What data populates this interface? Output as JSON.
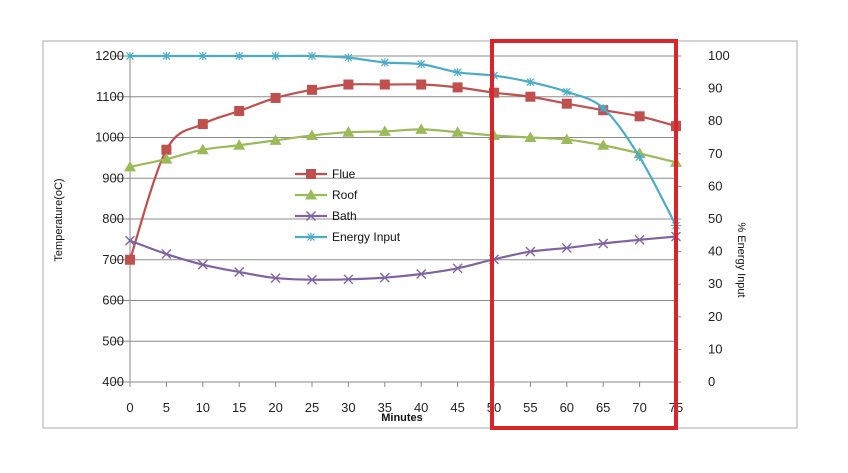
{
  "chart_data": {
    "type": "line",
    "xlabel": "Minutes",
    "ylabel": "Temperature(oC)",
    "y2label": "% Energy Input",
    "x": [
      0,
      5,
      10,
      15,
      20,
      25,
      30,
      35,
      40,
      45,
      50,
      55,
      60,
      65,
      70,
      75
    ],
    "xticks": [
      "0",
      "5",
      "10",
      "15",
      "20",
      "25",
      "30",
      "35",
      "40",
      "45",
      "50",
      "55",
      "60",
      "65",
      "70",
      "75"
    ],
    "ylim": [
      400,
      1200
    ],
    "yticks": [
      "400",
      "500",
      "600",
      "700",
      "800",
      "900",
      "1000",
      "1100",
      "1200"
    ],
    "y2lim": [
      0,
      100
    ],
    "y2ticks": [
      "0",
      "10",
      "20",
      "30",
      "40",
      "50",
      "60",
      "70",
      "80",
      "90",
      "100"
    ],
    "grid": "horizontal",
    "legend_position": "center",
    "series": [
      {
        "name": "Flue",
        "axis": "left",
        "color": "#c0504d",
        "marker": "square",
        "values": [
          700,
          970,
          1033,
          1065,
          1097,
          1117,
          1130,
          1130,
          1130,
          1123,
          1110,
          1100,
          1083,
          1067,
          1052,
          1028
        ]
      },
      {
        "name": "Roof",
        "axis": "left",
        "color": "#9bbb59",
        "marker": "triangle",
        "values": [
          928,
          947,
          970,
          981,
          993,
          1005,
          1013,
          1015,
          1020,
          1013,
          1005,
          1000,
          995,
          981,
          961,
          939
        ]
      },
      {
        "name": "Bath",
        "axis": "left",
        "color": "#8064a2",
        "marker": "x",
        "values": [
          747,
          714,
          688,
          670,
          655,
          651,
          652,
          656,
          665,
          679,
          701,
          720,
          729,
          740,
          749,
          757
        ]
      },
      {
        "name": "Energy Input",
        "axis": "right",
        "color": "#4bacc6",
        "marker": "asterisk",
        "values": [
          100,
          100,
          100,
          100,
          100,
          100,
          99.5,
          98,
          97.5,
          95,
          94,
          92,
          89,
          84,
          69,
          48
        ]
      }
    ],
    "highlight": {
      "x_from": 50,
      "x_to": 75,
      "color": "#d9242b"
    }
  }
}
